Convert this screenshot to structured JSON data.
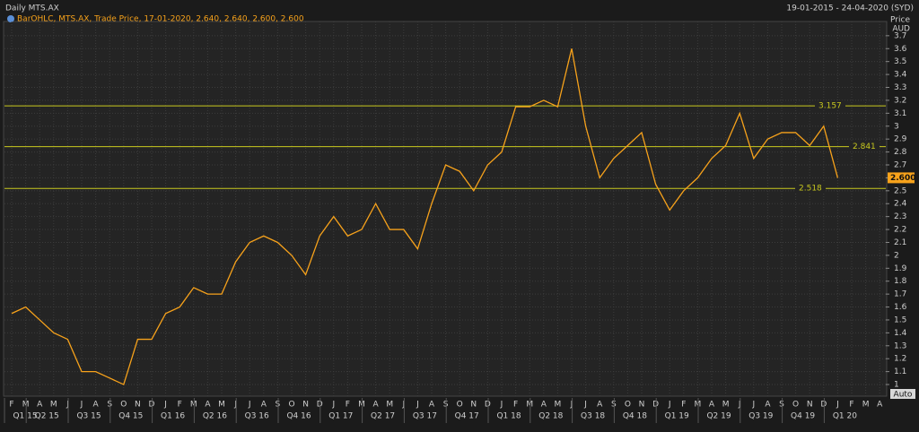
{
  "chart_data": {
    "type": "line",
    "title": "Daily MTS.AX",
    "date_range": "19-01-2015 - 24-04-2020 (SYD)",
    "y_label": "Price",
    "y_unit": "AUD",
    "button": "Auto",
    "categories": [
      "F",
      "M",
      "A",
      "M",
      "J",
      "J",
      "A",
      "S",
      "O",
      "N",
      "D",
      "J",
      "F",
      "M",
      "A",
      "M",
      "J",
      "J",
      "A",
      "S",
      "O",
      "N",
      "D",
      "J",
      "F",
      "M",
      "A",
      "M",
      "J",
      "J",
      "A",
      "S",
      "O",
      "N",
      "D",
      "J",
      "F",
      "M",
      "A",
      "M",
      "J",
      "J",
      "A",
      "S",
      "O",
      "N",
      "D",
      "J",
      "F",
      "M",
      "A",
      "M",
      "J",
      "J",
      "A",
      "S",
      "O",
      "N",
      "D",
      "J",
      "F",
      "M",
      "A"
    ],
    "quarter_labels": [
      "Q1 15",
      "Q2 15",
      "Q3 15",
      "Q4 15",
      "Q1 16",
      "Q2 16",
      "Q3 16",
      "Q4 16",
      "Q1 17",
      "Q2 17",
      "Q3 17",
      "Q4 17",
      "Q1 18",
      "Q2 18",
      "Q3 18",
      "Q4 18",
      "Q1 19",
      "Q2 19",
      "Q3 19",
      "Q4 19",
      "Q1 20"
    ],
    "series": [
      {
        "name": "BarOHLC, MTS.AX, Trade Price, 17-01-2020, 2.640, 2.640, 2.600, 2.600",
        "color": "#f7a21b",
        "values": [
          1.55,
          1.6,
          1.5,
          1.4,
          1.35,
          1.1,
          1.1,
          1.05,
          1.0,
          1.35,
          1.35,
          1.55,
          1.6,
          1.75,
          1.7,
          1.7,
          1.95,
          2.1,
          2.15,
          2.1,
          2.0,
          1.85,
          2.15,
          2.3,
          2.15,
          2.2,
          2.4,
          2.2,
          2.2,
          2.05,
          2.4,
          2.7,
          2.65,
          2.5,
          2.7,
          2.8,
          3.15,
          3.15,
          3.2,
          3.15,
          3.6,
          3.0,
          2.6,
          2.75,
          2.85,
          2.95,
          2.55,
          2.35,
          2.5,
          2.6,
          2.75,
          2.85,
          3.1,
          2.75,
          2.9,
          2.95,
          2.95,
          2.85,
          3.0,
          2.6,
          null,
          null,
          null
        ]
      }
    ],
    "levels": [
      3.157,
      2.841,
      2.518
    ],
    "level_color": "#c8c81e",
    "last_price": {
      "value": 2.6,
      "label": "2.600"
    },
    "ylim": [
      0.91,
      3.81
    ],
    "yticks": [
      1,
      1.1,
      1.2,
      1.3,
      1.4,
      1.5,
      1.6,
      1.7,
      1.8,
      1.9,
      2,
      2.1,
      2.2,
      2.3,
      2.4,
      2.5,
      2.6,
      2.7,
      2.8,
      2.9,
      3,
      3.1,
      3.2,
      3.3,
      3.4,
      3.5,
      3.6,
      3.7
    ],
    "grid": true
  }
}
